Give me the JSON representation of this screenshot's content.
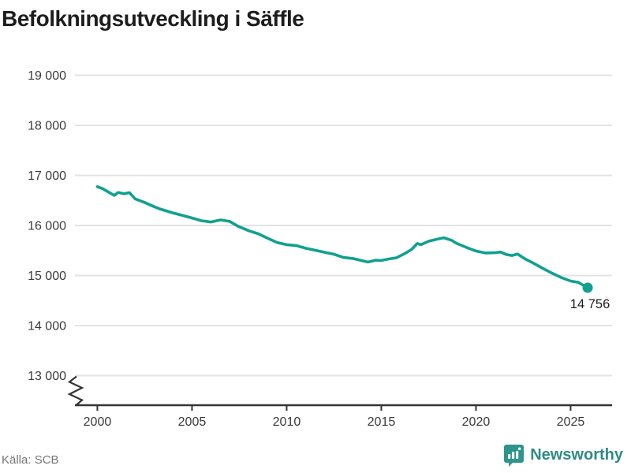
{
  "title": "Befolkningsutveckling i Säffle",
  "source": "Källa: SCB",
  "logo": {
    "text": "Newsworthy"
  },
  "colors": {
    "line": "#12a08f",
    "marker": "#12a08f",
    "grid": "#e3e3e3",
    "axis": "#333333",
    "tick_text": "#3a3a3a",
    "title_text": "#1d1d1d",
    "end_label_text": "#1d1d1d",
    "source_text": "#767676",
    "logo_teal": "#2e8b85",
    "logo_icon_teal": "#2e958c"
  },
  "chart_data": {
    "type": "line",
    "title": "Befolkningsutveckling i Säffle",
    "xlabel": "",
    "ylabel": "",
    "grid": "horizontal",
    "y_axis_break": true,
    "xlim": [
      1998.815,
      2027.19
    ],
    "ylim": [
      13000,
      19000
    ],
    "legend": "none",
    "x_ticks": {
      "values": [
        2000,
        2005,
        2010,
        2015,
        2020,
        2025
      ],
      "labels": [
        "2000",
        "2005",
        "2010",
        "2015",
        "2020",
        "2025"
      ]
    },
    "y_ticks": {
      "values": [
        19000,
        18000,
        17000,
        16000,
        15000,
        14000,
        13000
      ],
      "labels": [
        "19 000",
        "18 000",
        "17 000",
        "16 000",
        "15 000",
        "14 000",
        "13 000"
      ]
    },
    "series": [
      {
        "name": "Befolkning i Säffle",
        "x": [
          2000.0,
          2000.3,
          2000.6,
          2000.9,
          2001.1,
          2001.4,
          2001.7,
          2002.0,
          2002.5,
          2003.0,
          2003.3,
          2004.0,
          2004.5,
          2005.0,
          2005.5,
          2006.0,
          2006.5,
          2007.0,
          2007.4,
          2008.0,
          2008.5,
          2009.0,
          2009.5,
          2010.0,
          2010.5,
          2011.0,
          2011.5,
          2012.0,
          2012.5,
          2013.0,
          2013.5,
          2014.0,
          2014.3,
          2014.7,
          2015.0,
          2015.4,
          2015.8,
          2016.2,
          2016.6,
          2016.9,
          2017.1,
          2017.5,
          2018.0,
          2018.3,
          2018.7,
          2019.0,
          2019.5,
          2020.0,
          2020.5,
          2021.0,
          2021.3,
          2021.6,
          2021.9,
          2022.2,
          2022.6,
          2023.0,
          2023.5,
          2024.0,
          2024.5,
          2025.0,
          2025.4,
          2025.9
        ],
        "y": [
          16775,
          16730,
          16665,
          16600,
          16660,
          16635,
          16655,
          16530,
          16460,
          16375,
          16330,
          16250,
          16200,
          16150,
          16095,
          16070,
          16110,
          16080,
          15990,
          15895,
          15835,
          15745,
          15660,
          15615,
          15600,
          15545,
          15505,
          15465,
          15425,
          15360,
          15340,
          15295,
          15270,
          15305,
          15300,
          15330,
          15355,
          15430,
          15520,
          15640,
          15615,
          15685,
          15730,
          15755,
          15705,
          15640,
          15560,
          15490,
          15450,
          15455,
          15470,
          15420,
          15400,
          15430,
          15330,
          15255,
          15150,
          15050,
          14960,
          14890,
          14865,
          14756
        ]
      }
    ],
    "last_point": {
      "x": 2025.9,
      "y": 14756,
      "label": "14 756"
    }
  }
}
